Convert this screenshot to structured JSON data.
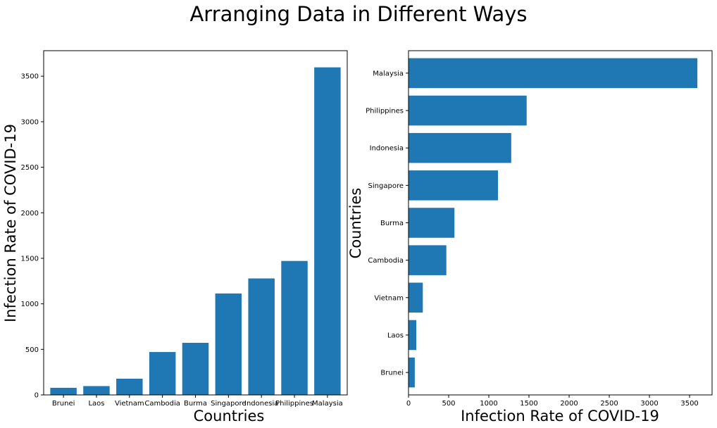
{
  "figure": {
    "title": "Arranging Data in Different Ways",
    "bar_color": "#1f77b4"
  },
  "chart_data": [
    {
      "type": "bar",
      "orientation": "vertical",
      "categories": [
        "Brunei",
        "Laos",
        "Vietnam",
        "Cambodia",
        "Burma",
        "Singapore",
        "Indonesia",
        "Philippines",
        "Malaysia"
      ],
      "values": [
        78,
        97,
        178,
        471,
        572,
        1114,
        1279,
        1471,
        3597
      ],
      "xlabel": "Countries",
      "ylabel": "Infection Rate of COVID-19",
      "ylim": [
        0,
        3780
      ],
      "yticks": [
        0,
        500,
        1000,
        1500,
        2000,
        2500,
        3000,
        3500
      ],
      "grid": false
    },
    {
      "type": "bar",
      "orientation": "horizontal",
      "categories": [
        "Brunei",
        "Laos",
        "Vietnam",
        "Cambodia",
        "Burma",
        "Singapore",
        "Indonesia",
        "Philippines",
        "Malaysia"
      ],
      "values": [
        78,
        97,
        178,
        471,
        572,
        1114,
        1279,
        1471,
        3597
      ],
      "xlabel": "Infection Rate of COVID-19",
      "ylabel": "Countries",
      "xlim": [
        0,
        3780
      ],
      "xticks": [
        0,
        500,
        1000,
        1500,
        2000,
        2500,
        3000,
        3500
      ],
      "grid": false
    }
  ]
}
